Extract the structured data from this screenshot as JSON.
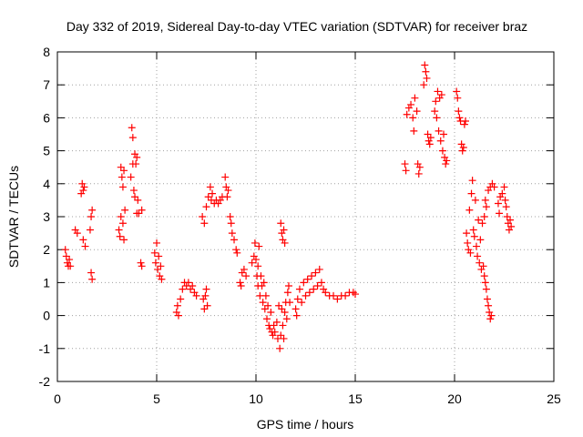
{
  "chart_data": {
    "type": "scatter",
    "title": "Day 332 of 2019, Sidereal Day-to-day VTEC variation (SDTVAR) for receiver braz",
    "xlabel": "GPS time / hours",
    "ylabel": "SDTVAR / TECUs",
    "xlim": [
      0,
      25
    ],
    "ylim": [
      -2,
      8
    ],
    "xticks": [
      0,
      5,
      10,
      15,
      20,
      25
    ],
    "yticks": [
      -2,
      -1,
      0,
      1,
      2,
      3,
      4,
      5,
      6,
      7,
      8
    ],
    "grid": true,
    "marker": "+",
    "color": "#ff0000",
    "series": [
      {
        "name": "SDTVAR",
        "points": [
          [
            0.4,
            2.0
          ],
          [
            0.45,
            1.8
          ],
          [
            0.5,
            1.6
          ],
          [
            0.55,
            1.5
          ],
          [
            0.6,
            1.7
          ],
          [
            0.65,
            1.5
          ],
          [
            0.9,
            2.6
          ],
          [
            1.0,
            2.5
          ],
          [
            1.2,
            3.7
          ],
          [
            1.25,
            4.0
          ],
          [
            1.3,
            3.8
          ],
          [
            1.35,
            3.9
          ],
          [
            1.3,
            2.3
          ],
          [
            1.4,
            2.1
          ],
          [
            1.65,
            2.6
          ],
          [
            1.7,
            3.0
          ],
          [
            1.75,
            3.2
          ],
          [
            1.7,
            1.3
          ],
          [
            1.75,
            1.1
          ],
          [
            3.1,
            2.6
          ],
          [
            3.15,
            2.4
          ],
          [
            3.2,
            3.0
          ],
          [
            3.2,
            4.5
          ],
          [
            3.25,
            4.2
          ],
          [
            3.3,
            2.8
          ],
          [
            3.3,
            3.9
          ],
          [
            3.35,
            2.3
          ],
          [
            3.35,
            4.4
          ],
          [
            3.4,
            3.2
          ],
          [
            3.7,
            4.2
          ],
          [
            3.75,
            5.7
          ],
          [
            3.8,
            5.4
          ],
          [
            3.8,
            4.6
          ],
          [
            3.85,
            3.8
          ],
          [
            3.9,
            4.9
          ],
          [
            3.9,
            3.6
          ],
          [
            3.95,
            4.6
          ],
          [
            4.0,
            3.1
          ],
          [
            4.0,
            4.8
          ],
          [
            4.05,
            3.5
          ],
          [
            4.1,
            3.1
          ],
          [
            4.25,
            3.2
          ],
          [
            4.2,
            1.6
          ],
          [
            4.25,
            1.5
          ],
          [
            4.9,
            1.9
          ],
          [
            4.95,
            1.6
          ],
          [
            5.0,
            2.2
          ],
          [
            5.05,
            1.4
          ],
          [
            5.1,
            1.8
          ],
          [
            5.15,
            1.2
          ],
          [
            5.2,
            1.5
          ],
          [
            5.25,
            1.1
          ],
          [
            6.0,
            0.1
          ],
          [
            6.05,
            0.3
          ],
          [
            6.1,
            0.0
          ],
          [
            6.2,
            0.5
          ],
          [
            6.3,
            0.8
          ],
          [
            6.4,
            1.0
          ],
          [
            6.5,
            0.9
          ],
          [
            6.6,
            1.0
          ],
          [
            6.7,
            0.8
          ],
          [
            6.8,
            0.9
          ],
          [
            6.9,
            0.7
          ],
          [
            7.0,
            0.6
          ],
          [
            7.35,
            0.5
          ],
          [
            7.4,
            0.2
          ],
          [
            7.45,
            0.6
          ],
          [
            7.5,
            0.8
          ],
          [
            7.55,
            0.3
          ],
          [
            7.3,
            3.0
          ],
          [
            7.4,
            2.8
          ],
          [
            7.5,
            3.3
          ],
          [
            7.6,
            3.6
          ],
          [
            7.7,
            3.9
          ],
          [
            7.75,
            3.5
          ],
          [
            7.8,
            3.7
          ],
          [
            7.9,
            3.4
          ],
          [
            8.0,
            3.5
          ],
          [
            8.1,
            3.4
          ],
          [
            8.2,
            3.5
          ],
          [
            8.3,
            3.6
          ],
          [
            8.45,
            4.2
          ],
          [
            8.5,
            3.9
          ],
          [
            8.55,
            3.6
          ],
          [
            8.6,
            3.8
          ],
          [
            8.7,
            3.0
          ],
          [
            8.75,
            2.8
          ],
          [
            8.8,
            2.5
          ],
          [
            8.9,
            2.3
          ],
          [
            9.0,
            2.0
          ],
          [
            9.05,
            1.9
          ],
          [
            9.2,
            1.0
          ],
          [
            9.25,
            0.9
          ],
          [
            9.3,
            1.3
          ],
          [
            9.4,
            1.4
          ],
          [
            9.5,
            1.2
          ],
          [
            9.8,
            1.6
          ],
          [
            9.9,
            1.8
          ],
          [
            9.95,
            2.2
          ],
          [
            10.0,
            1.7
          ],
          [
            10.05,
            1.2
          ],
          [
            10.1,
            1.5
          ],
          [
            10.1,
            0.9
          ],
          [
            10.15,
            2.1
          ],
          [
            10.2,
            0.6
          ],
          [
            10.25,
            1.2
          ],
          [
            10.3,
            0.9
          ],
          [
            10.35,
            0.4
          ],
          [
            10.4,
            1.0
          ],
          [
            10.45,
            0.2
          ],
          [
            10.5,
            0.6
          ],
          [
            10.55,
            -0.1
          ],
          [
            10.6,
            0.3
          ],
          [
            10.65,
            -0.3
          ],
          [
            10.7,
            -0.4
          ],
          [
            10.75,
            0.1
          ],
          [
            10.8,
            -0.5
          ],
          [
            10.85,
            -0.6
          ],
          [
            10.9,
            -0.3
          ],
          [
            10.95,
            -0.5
          ],
          [
            11.05,
            -0.2
          ],
          [
            11.1,
            -0.7
          ],
          [
            11.15,
            0.3
          ],
          [
            11.2,
            -1.0
          ],
          [
            11.25,
            -0.6
          ],
          [
            11.3,
            0.2
          ],
          [
            11.35,
            -0.3
          ],
          [
            11.4,
            -0.7
          ],
          [
            11.45,
            0.1
          ],
          [
            11.5,
            0.4
          ],
          [
            11.55,
            -0.1
          ],
          [
            11.6,
            0.7
          ],
          [
            11.65,
            0.9
          ],
          [
            11.7,
            0.4
          ],
          [
            11.25,
            2.8
          ],
          [
            11.3,
            2.5
          ],
          [
            11.35,
            2.3
          ],
          [
            11.4,
            2.6
          ],
          [
            11.45,
            2.2
          ],
          [
            12.0,
            0.2
          ],
          [
            12.05,
            0.0
          ],
          [
            12.1,
            0.5
          ],
          [
            12.2,
            0.8
          ],
          [
            12.3,
            0.4
          ],
          [
            12.4,
            1.0
          ],
          [
            12.5,
            0.6
          ],
          [
            12.6,
            1.1
          ],
          [
            12.7,
            0.7
          ],
          [
            12.8,
            1.2
          ],
          [
            12.9,
            0.8
          ],
          [
            13.0,
            1.3
          ],
          [
            13.1,
            0.9
          ],
          [
            13.2,
            1.4
          ],
          [
            13.3,
            1.0
          ],
          [
            13.4,
            0.8
          ],
          [
            13.5,
            0.7
          ],
          [
            13.7,
            0.6
          ],
          [
            13.9,
            0.6
          ],
          [
            14.1,
            0.5
          ],
          [
            14.3,
            0.6
          ],
          [
            14.5,
            0.6
          ],
          [
            14.7,
            0.7
          ],
          [
            14.9,
            0.7
          ],
          [
            15.0,
            0.65
          ],
          [
            17.5,
            4.6
          ],
          [
            17.55,
            4.4
          ],
          [
            17.6,
            6.1
          ],
          [
            17.7,
            6.3
          ],
          [
            17.8,
            6.4
          ],
          [
            17.9,
            6.0
          ],
          [
            17.95,
            5.6
          ],
          [
            18.0,
            6.6
          ],
          [
            18.1,
            6.2
          ],
          [
            18.15,
            4.6
          ],
          [
            18.2,
            4.3
          ],
          [
            18.25,
            4.5
          ],
          [
            18.45,
            7.0
          ],
          [
            18.5,
            7.6
          ],
          [
            18.55,
            7.4
          ],
          [
            18.6,
            7.2
          ],
          [
            18.65,
            5.5
          ],
          [
            18.7,
            5.3
          ],
          [
            18.75,
            5.2
          ],
          [
            18.8,
            5.4
          ],
          [
            19.0,
            6.2
          ],
          [
            19.05,
            6.5
          ],
          [
            19.1,
            6.0
          ],
          [
            19.15,
            6.8
          ],
          [
            19.2,
            5.6
          ],
          [
            19.25,
            6.6
          ],
          [
            19.3,
            5.3
          ],
          [
            19.35,
            6.7
          ],
          [
            19.4,
            5.0
          ],
          [
            19.45,
            5.5
          ],
          [
            19.5,
            4.8
          ],
          [
            19.55,
            4.6
          ],
          [
            19.6,
            4.7
          ],
          [
            20.1,
            6.8
          ],
          [
            20.15,
            6.6
          ],
          [
            20.2,
            6.2
          ],
          [
            20.25,
            6.0
          ],
          [
            20.3,
            5.9
          ],
          [
            20.35,
            5.2
          ],
          [
            20.4,
            5.0
          ],
          [
            20.45,
            5.1
          ],
          [
            20.5,
            5.8
          ],
          [
            20.55,
            5.9
          ],
          [
            20.6,
            2.5
          ],
          [
            20.65,
            2.2
          ],
          [
            20.7,
            2.0
          ],
          [
            20.75,
            3.2
          ],
          [
            20.8,
            1.9
          ],
          [
            20.85,
            3.7
          ],
          [
            20.9,
            4.1
          ],
          [
            20.95,
            2.6
          ],
          [
            21.0,
            2.4
          ],
          [
            21.05,
            3.5
          ],
          [
            21.1,
            2.1
          ],
          [
            21.15,
            1.8
          ],
          [
            21.2,
            2.9
          ],
          [
            21.25,
            1.6
          ],
          [
            21.3,
            2.3
          ],
          [
            21.35,
            1.4
          ],
          [
            21.4,
            2.8
          ],
          [
            21.45,
            1.5
          ],
          [
            21.5,
            1.2
          ],
          [
            21.55,
            1.0
          ],
          [
            21.6,
            0.8
          ],
          [
            21.65,
            0.5
          ],
          [
            21.7,
            0.3
          ],
          [
            21.75,
            0.1
          ],
          [
            21.8,
            -0.1
          ],
          [
            21.85,
            0.0
          ],
          [
            21.5,
            3.0
          ],
          [
            21.55,
            3.5
          ],
          [
            21.6,
            3.3
          ],
          [
            21.7,
            3.8
          ],
          [
            21.8,
            3.9
          ],
          [
            21.9,
            4.0
          ],
          [
            22.0,
            3.9
          ],
          [
            22.2,
            3.4
          ],
          [
            22.25,
            3.1
          ],
          [
            22.3,
            3.6
          ],
          [
            22.4,
            3.7
          ],
          [
            22.5,
            3.9
          ],
          [
            22.55,
            3.5
          ],
          [
            22.6,
            3.3
          ],
          [
            22.65,
            3.0
          ],
          [
            22.7,
            2.8
          ],
          [
            22.75,
            2.6
          ],
          [
            22.8,
            2.9
          ],
          [
            22.85,
            2.7
          ]
        ]
      }
    ]
  }
}
